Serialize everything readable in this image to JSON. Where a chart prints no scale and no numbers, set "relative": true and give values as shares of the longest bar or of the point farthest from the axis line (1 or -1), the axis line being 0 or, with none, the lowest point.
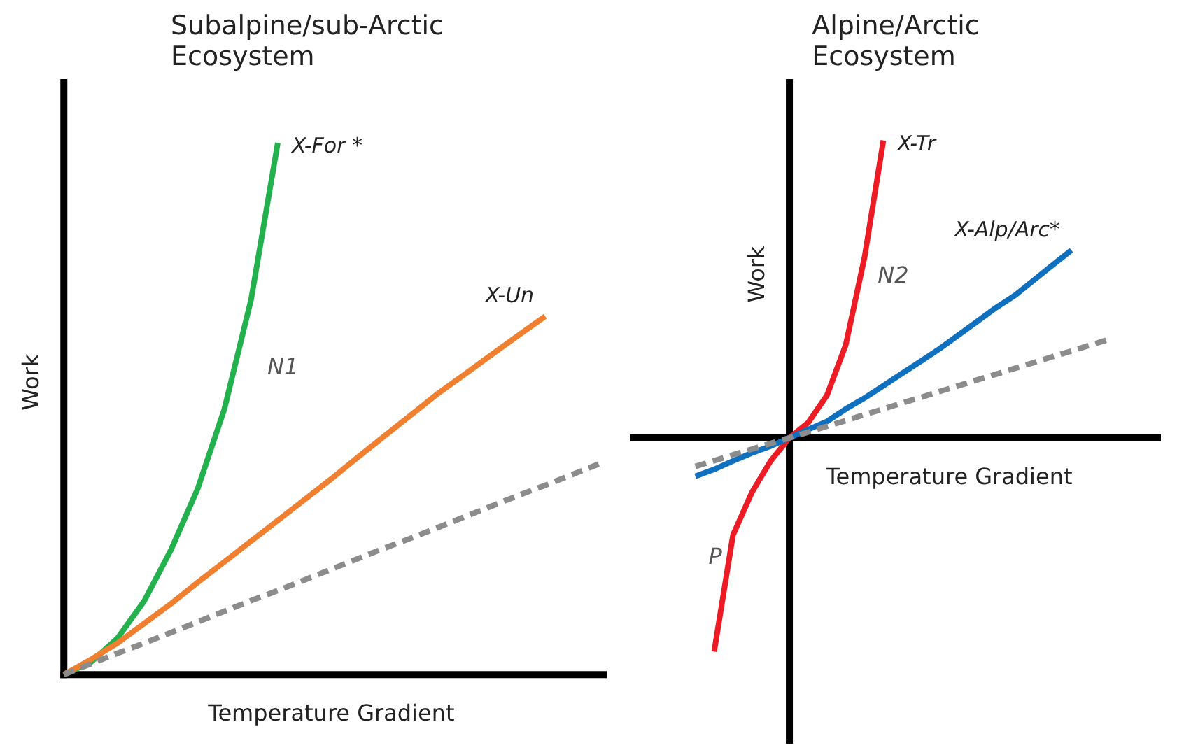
{
  "chart_data": [
    {
      "type": "line",
      "title": "Subalpine/sub-Arctic Ecosystem",
      "xlabel": "Temperature Gradient",
      "ylabel": "Work",
      "relative": true,
      "grid": false,
      "categories": [
        null,
        null,
        null,
        null,
        null,
        null,
        null,
        null,
        null,
        null,
        null,
        null,
        null,
        null,
        null,
        null,
        null,
        null,
        null,
        null,
        null
      ],
      "series": [
        {
          "name": "X-For *",
          "color": "#22b14c",
          "values": [
            0,
            0.023,
            0.068,
            0.138,
            0.234,
            0.349,
            0.499,
            0.705,
            1.0,
            null,
            null,
            null,
            null,
            null,
            null,
            null,
            null,
            null,
            null,
            null,
            null
          ]
        },
        {
          "name": "X-Un",
          "color": "#f08030",
          "values": [
            0,
            0.028,
            0.059,
            0.096,
            0.133,
            0.173,
            0.212,
            0.251,
            0.29,
            0.329,
            0.368,
            0.409,
            0.449,
            0.489,
            0.529,
            0.565,
            0.602,
            0.638,
            0.674,
            null,
            null
          ]
        },
        {
          "color": "#8c8c8c",
          "line_style": "dashed",
          "values": [
            0,
            0.02,
            0.04,
            0.059,
            0.079,
            0.099,
            0.119,
            0.139,
            0.158,
            0.178,
            0.198,
            0.218,
            0.238,
            0.257,
            0.277,
            0.297,
            0.317,
            0.337,
            0.356,
            0.376,
            0.396
          ]
        }
      ],
      "annotations": [
        "N1"
      ]
    },
    {
      "type": "line",
      "title": "Alpine/Arctic Ecosystem",
      "xlabel": "Temperature Gradient",
      "ylabel": "Work",
      "relative": true,
      "grid": false,
      "categories": [
        null,
        null,
        null,
        null,
        null,
        null,
        null,
        null,
        null,
        null,
        null,
        null,
        null,
        null,
        null,
        null,
        null,
        null,
        null,
        null,
        null,
        null,
        null
      ],
      "series": [
        {
          "name": "X-Tr",
          "color": "#ed1c24",
          "values": [
            null,
            -0.719,
            -0.327,
            -0.184,
            -0.078,
            0,
            0.051,
            0.143,
            0.313,
            0.608,
            1.0,
            null,
            null,
            null,
            null,
            null,
            null,
            null,
            null,
            null,
            null,
            null,
            null
          ]
        },
        {
          "name": "X-Alp/Arc*",
          "color": "#1070c0",
          "values": [
            -0.129,
            -0.106,
            -0.078,
            -0.051,
            -0.028,
            0,
            0.028,
            0.055,
            0.097,
            0.134,
            0.175,
            0.217,
            0.258,
            0.3,
            0.346,
            0.392,
            0.438,
            0.479,
            0.53,
            0.581,
            0.631,
            null,
            null
          ]
        },
        {
          "color": "#8c8c8c",
          "line_style": "dashed",
          "values": [
            -0.096,
            -0.077,
            -0.057,
            -0.038,
            -0.019,
            0,
            0.019,
            0.039,
            0.058,
            0.078,
            0.097,
            0.117,
            0.136,
            0.156,
            0.175,
            0.195,
            0.214,
            0.234,
            0.253,
            0.273,
            0.292,
            0.312,
            0.331
          ]
        }
      ],
      "annotations": [
        "N2",
        "P"
      ]
    }
  ]
}
